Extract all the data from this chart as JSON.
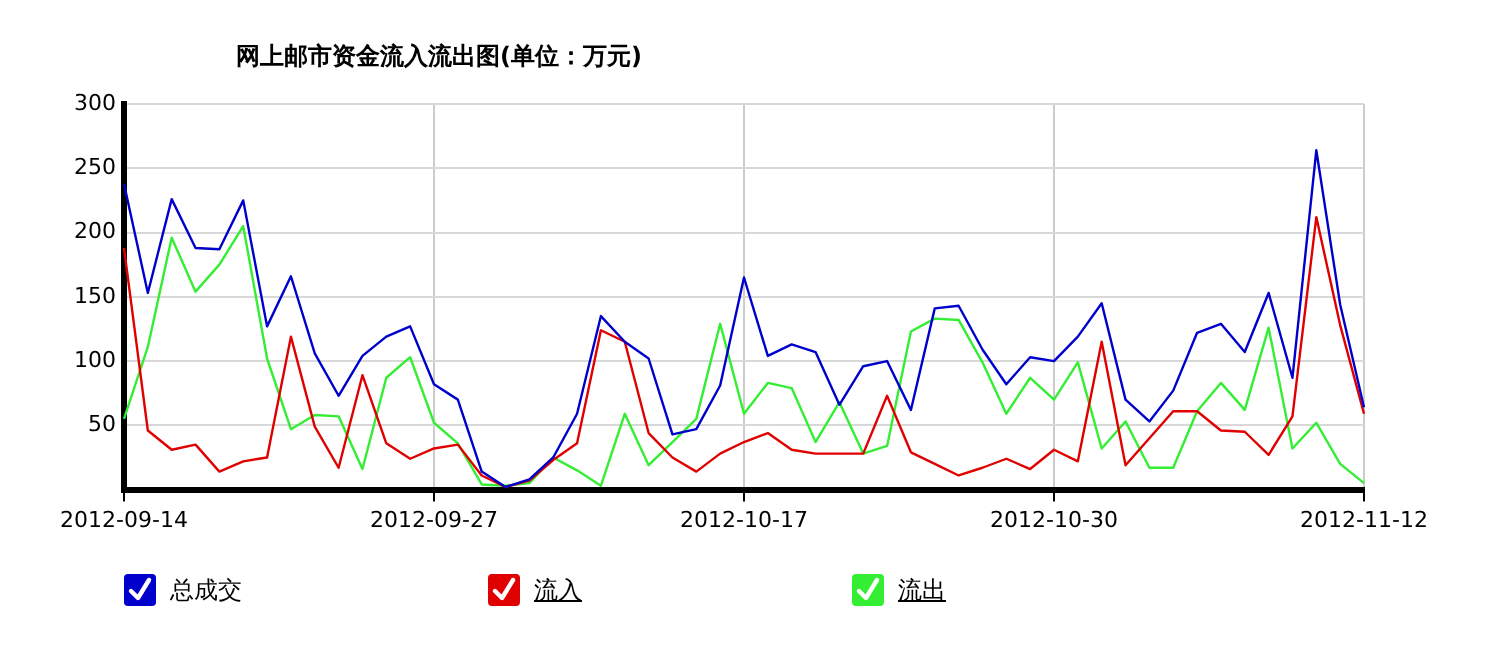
{
  "chart_data": {
    "type": "line",
    "title": "网上邮市资金流入流出图(单位：万元)",
    "categories": [
      "2012-09-14",
      null,
      null,
      null,
      null,
      null,
      null,
      null,
      null,
      null,
      null,
      null,
      null,
      "2012-09-27",
      null,
      null,
      null,
      null,
      null,
      null,
      null,
      null,
      null,
      null,
      null,
      null,
      "2012-10-17",
      null,
      null,
      null,
      null,
      null,
      null,
      null,
      null,
      null,
      null,
      null,
      null,
      "2012-10-30",
      null,
      null,
      null,
      null,
      null,
      null,
      null,
      null,
      null,
      null,
      null,
      null,
      "2012-11-12"
    ],
    "series": [
      {
        "name": "总成交",
        "color": "#0000cc",
        "values": [
          238,
          153,
          226,
          188,
          187,
          225,
          127,
          166,
          106,
          73,
          104,
          119,
          127,
          82,
          70,
          14,
          2,
          8,
          25,
          59,
          135,
          115,
          102,
          43,
          47,
          81,
          165,
          104,
          113,
          107,
          66,
          96,
          100,
          62,
          141,
          143,
          109,
          82,
          103,
          100,
          119,
          145,
          70,
          53,
          77,
          122,
          129,
          107,
          153,
          87,
          264,
          144,
          64
        ]
      },
      {
        "name": "流入",
        "color": "#e00000",
        "values": [
          188,
          46,
          31,
          35,
          14,
          22,
          25,
          119,
          49,
          17,
          89,
          36,
          24,
          32,
          35,
          11,
          2,
          7,
          23,
          36,
          124,
          115,
          44,
          25,
          14,
          28,
          37,
          44,
          31,
          28,
          28,
          28,
          73,
          29,
          20,
          11,
          17,
          24,
          16,
          31,
          22,
          115,
          19,
          40,
          61,
          61,
          46,
          45,
          27,
          57,
          212,
          128,
          59
        ]
      },
      {
        "name": "流出",
        "color": "#33ee33",
        "values": [
          55,
          111,
          196,
          154,
          175,
          205,
          102,
          47,
          58,
          57,
          16,
          87,
          103,
          52,
          36,
          4,
          3,
          5,
          25,
          15,
          3,
          59,
          19,
          37,
          55,
          129,
          59,
          83,
          79,
          37,
          68,
          28,
          34,
          123,
          133,
          132,
          99,
          59,
          87,
          70,
          99,
          32,
          53,
          17,
          17,
          61,
          83,
          62,
          126,
          32,
          52,
          20,
          5
        ]
      }
    ],
    "ylim": [
      0,
      300
    ],
    "yticks": [
      50,
      100,
      150,
      200,
      250,
      300
    ],
    "grid": "xy",
    "legend": "bottom",
    "marker": "none",
    "line_style": "solid"
  }
}
